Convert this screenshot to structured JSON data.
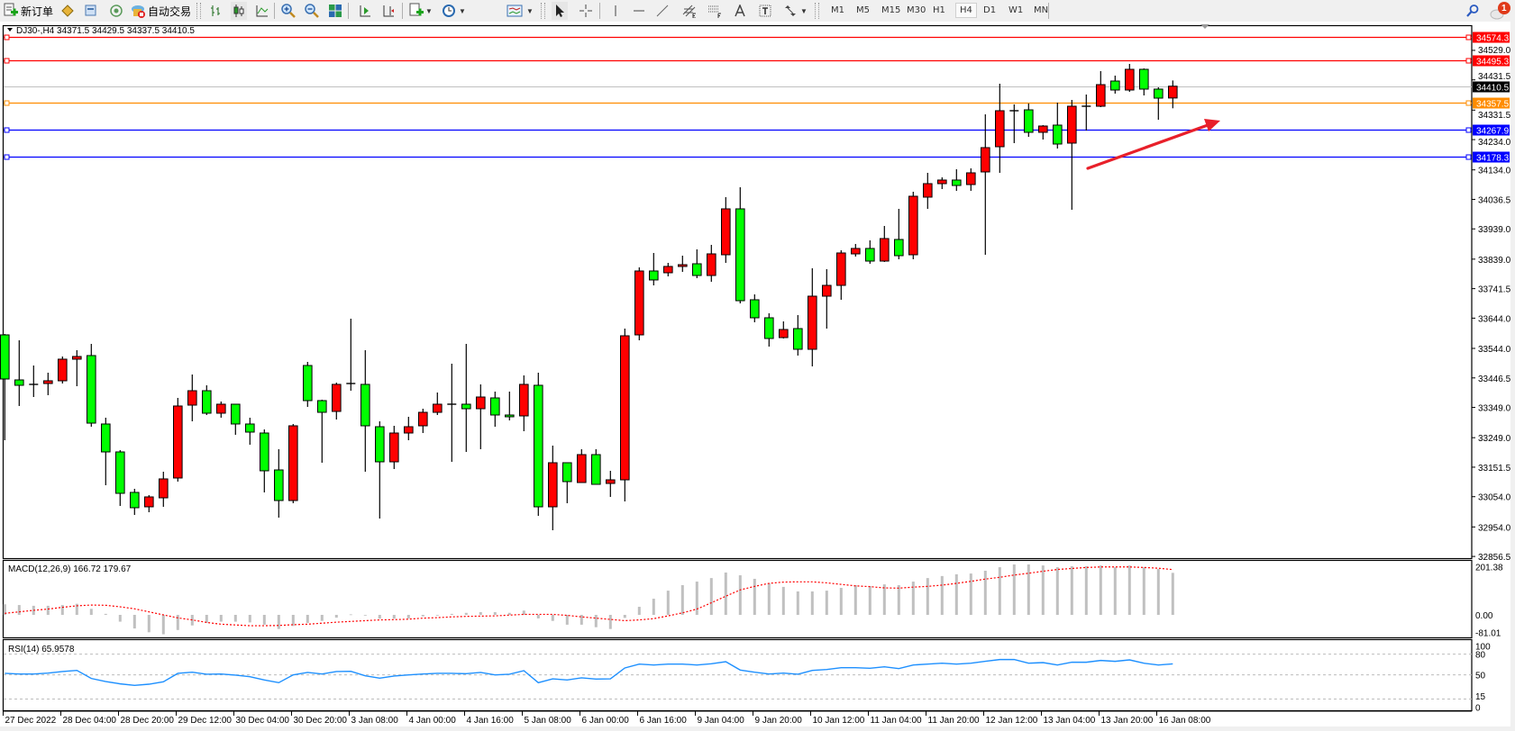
{
  "toolbar": {
    "new_order_label": "新订单",
    "auto_trading_label": "自动交易",
    "timeframes": [
      "M1",
      "M5",
      "M15",
      "M30",
      "H1",
      "H4",
      "D1",
      "W1",
      "MN"
    ],
    "selected_timeframe": "H4",
    "notification_count": "1",
    "icons": [
      "new-order-icon",
      "market-watch-icon",
      "navigator-icon",
      "signals-icon",
      "auto-trading-icon",
      "bar-chart-icon",
      "candlestick-icon",
      "line-chart-icon",
      "zoom-in-icon",
      "zoom-out-icon",
      "tile-windows-icon",
      "autoscroll-icon",
      "chart-shift-icon",
      "indicators-icon",
      "periods-clock-icon",
      "templates-icon",
      "cursor-icon",
      "crosshair-icon",
      "vertical-line-icon",
      "horizontal-line-icon",
      "trendline-icon",
      "equidistant-channel-icon",
      "fibonacci-icon",
      "text-icon",
      "text-label-icon",
      "arrows-icon",
      "search-icon",
      "notification-icon"
    ]
  },
  "chart": {
    "title": "DJ30-,H4  34371.5 34429.5 34337.5 34410.5",
    "colors": {
      "up": "#ff0000",
      "down": "#00ff00",
      "wick": "#000000",
      "bid_line": "#c0c0c0",
      "macd_hist": "#c0c0c0",
      "macd_signal": "#ff0000",
      "rsi": "#1e90ff",
      "arrow": "#e8202a"
    }
  },
  "chart_data": [
    {
      "type": "candlestick",
      "symbol": "DJ30-",
      "timeframe": "H4",
      "ohlc_format": [
        "open",
        "high",
        "low",
        "close"
      ],
      "candles": [
        [
          33588.7,
          33591.7,
          33240.6,
          33442.9
        ],
        [
          33439.9,
          33570.8,
          33353.7,
          33422.1
        ],
        [
          33425.1,
          33487.5,
          33383.4,
          33425.1
        ],
        [
          33428.0,
          33463.7,
          33389.4,
          33437.0
        ],
        [
          33437.0,
          33517.3,
          33428.0,
          33508.4
        ],
        [
          33508.4,
          33538.1,
          33419.1,
          33517.3
        ],
        [
          33520.3,
          33558.9,
          33285.2,
          33297.1
        ],
        [
          33294.2,
          33315.0,
          33091.9,
          33201.9
        ],
        [
          33201.9,
          33207.9,
          33023.4,
          33065.1
        ],
        [
          33068.1,
          33080.0,
          32993.7,
          33017.5
        ],
        [
          33020.5,
          33059.1,
          33002.6,
          33053.2
        ],
        [
          33050.2,
          33136.5,
          33020.5,
          33112.7
        ],
        [
          33115.7,
          33380.4,
          33103.8,
          33353.7
        ],
        [
          33356.6,
          33457.8,
          33303.1,
          33404.2
        ],
        [
          33404.2,
          33422.1,
          33323.9,
          33329.9
        ],
        [
          33329.9,
          33368.5,
          33315.0,
          33359.6
        ],
        [
          33359.6,
          33359.6,
          33258.5,
          33294.2
        ],
        [
          33294.2,
          33315.0,
          33225.7,
          33267.4
        ],
        [
          33264.4,
          33276.3,
          33068.1,
          33139.5
        ],
        [
          33142.4,
          33210.9,
          32984.8,
          33041.3
        ],
        [
          33041.3,
          33294.2,
          33032.4,
          33288.2
        ],
        [
          33487.5,
          33499.4,
          33350.7,
          33371.5
        ],
        [
          33371.5,
          33374.5,
          33166.2,
          33332.8
        ],
        [
          33335.8,
          33431.0,
          33309.0,
          33425.1
        ],
        [
          33428.0,
          33642.2,
          33404.2,
          33428.0
        ],
        [
          33425.1,
          33538.1,
          33136.5,
          33288.2
        ],
        [
          33285.2,
          33303.1,
          32981.8,
          33169.2
        ],
        [
          33169.2,
          33288.2,
          33145.4,
          33264.4
        ],
        [
          33264.4,
          33318.0,
          33240.6,
          33285.2
        ],
        [
          33288.2,
          33344.7,
          33264.4,
          33332.8
        ],
        [
          33332.8,
          33398.3,
          33323.9,
          33359.6
        ],
        [
          33359.6,
          33493.5,
          33169.2,
          33359.6
        ],
        [
          33359.6,
          33558.9,
          33201.9,
          33344.7
        ],
        [
          33344.7,
          33425.1,
          33210.9,
          33383.4
        ],
        [
          33380.4,
          33401.3,
          33285.2,
          33323.9
        ],
        [
          33323.9,
          33401.3,
          33306.1,
          33318.0
        ],
        [
          33320.9,
          33454.8,
          33270.4,
          33425.1
        ],
        [
          33422.1,
          33463.7,
          32990.7,
          33020.5
        ],
        [
          33020.5,
          33222.8,
          32943.1,
          33166.2
        ],
        [
          33166.2,
          33166.2,
          33032.4,
          33103.8
        ],
        [
          33100.8,
          33210.9,
          33100.8,
          33193.0
        ],
        [
          33193.0,
          33210.9,
          33094.8,
          33094.8
        ],
        [
          33097.8,
          33139.5,
          33053.2,
          33109.7
        ],
        [
          33109.7,
          33609.5,
          33038.3,
          33585.7
        ],
        [
          33588.7,
          33811.8,
          33570.8,
          33799.9
        ],
        [
          33799.9,
          33859.4,
          33752.3,
          33770.2
        ],
        [
          33794.0,
          33826.7,
          33782.1,
          33814.8
        ],
        [
          33814.8,
          33850.5,
          33796.9,
          33820.7
        ],
        [
          33823.7,
          33871.3,
          33776.1,
          33785.0
        ],
        [
          33785.0,
          33886.2,
          33764.2,
          33856.4
        ],
        [
          33853.5,
          34043.9,
          33826.7,
          34005.2
        ],
        [
          34005.2,
          34076.6,
          33692.8,
          33701.7
        ],
        [
          33704.7,
          33722.6,
          33630.3,
          33645.2
        ],
        [
          33645.2,
          33660.1,
          33550.0,
          33576.8
        ],
        [
          33579.8,
          33633.3,
          33576.8,
          33606.5
        ],
        [
          33609.5,
          33654.1,
          33520.3,
          33541.1
        ],
        [
          33541.1,
          33808.8,
          33484.6,
          33716.6
        ],
        [
          33716.6,
          33805.9,
          33609.5,
          33752.3
        ],
        [
          33752.3,
          33868.3,
          33704.7,
          33859.4
        ],
        [
          33856.4,
          33889.2,
          33847.5,
          33874.3
        ],
        [
          33874.3,
          33901.1,
          33823.7,
          33832.6
        ],
        [
          33832.6,
          33948.7,
          33829.7,
          33907.0
        ],
        [
          33904.0,
          34005.2,
          33838.6,
          33850.5
        ],
        [
          33853.5,
          34061.7,
          33838.6,
          34046.8
        ],
        [
          34043.9,
          34124.2,
          34005.2,
          34088.5
        ],
        [
          34088.5,
          34109.3,
          34070.6,
          34100.4
        ],
        [
          34100.4,
          34136.1,
          34064.7,
          34082.5
        ],
        [
          34085.5,
          34139.1,
          34064.7,
          34124.2
        ],
        [
          34127.2,
          34317.6,
          33853.5,
          34207.5
        ],
        [
          34210.5,
          34418.7,
          34124.2,
          34329.5
        ],
        [
          34329.5,
          34350.3,
          34222.4,
          34329.5
        ],
        [
          34332.4,
          34353.3,
          34243.2,
          34258.1
        ],
        [
          34258.1,
          34281.9,
          34234.3,
          34278.9
        ],
        [
          34281.9,
          34356.2,
          34204.5,
          34219.4
        ],
        [
          34222.4,
          34365.2,
          34002.2,
          34344.3
        ],
        [
          34344.3,
          34383.0,
          34264.0,
          34344.3
        ],
        [
          34344.3,
          34460.4,
          34341.4,
          34415.7
        ],
        [
          34427.6,
          34445.5,
          34386.0,
          34397.9
        ],
        [
          34397.9,
          34484.2,
          34391.9,
          34466.3
        ],
        [
          34466.3,
          34469.3,
          34380.0,
          34400.9
        ],
        [
          34400.9,
          34406.8,
          34299.7,
          34371.1
        ],
        [
          34371.5,
          34429.5,
          34337.5,
          34410.5
        ]
      ],
      "ylim": [
        32856.5,
        34574.3
      ],
      "y_tick_labels": [
        "34529.0",
        "34431.5",
        "34331.5",
        "34234.0",
        "34134.0",
        "34036.5",
        "33939.0",
        "33839.0",
        "33741.5",
        "33644.0",
        "33544.0",
        "33446.5",
        "33349.0",
        "33249.0",
        "33151.5",
        "33054.0",
        "32954.0",
        "32856.5"
      ],
      "levels": [
        {
          "price": "34574.3",
          "color": "#ff0000"
        },
        {
          "price": "34495.3",
          "color": "#ff0000"
        },
        {
          "price": "34410.5",
          "color": "#000000",
          "bid": true
        },
        {
          "price": "34357.5",
          "color": "#ff8c00"
        },
        {
          "price": "34267.9",
          "color": "#0000ff"
        },
        {
          "price": "34178.3",
          "color": "#0000ff"
        }
      ],
      "annotation": "red-arrow-up-right",
      "x_tick_every_bars": 4,
      "x_tick_labels": [
        "27 Dec 2022",
        "28 Dec 04:00",
        "28 Dec 20:00",
        "29 Dec 12:00",
        "30 Dec 04:00",
        "30 Dec 20:00",
        "3 Jan 08:00",
        "4 Jan 00:00",
        "4 Jan 16:00",
        "5 Jan 08:00",
        "6 Jan 00:00",
        "6 Jan 16:00",
        "9 Jan 04:00",
        "9 Jan 20:00",
        "10 Jan 12:00",
        "11 Jan 04:00",
        "11 Jan 20:00",
        "12 Jan 12:00",
        "13 Jan 04:00",
        "13 Jan 20:00",
        "16 Jan 08:00"
      ]
    },
    {
      "type": "bar",
      "title": "MACD(12,26,9) 166.72 179.67",
      "ylim": [
        -81.01,
        201.38
      ],
      "y_tick_labels": [
        "201.38",
        "0.00",
        "-81.01"
      ],
      "histogram": [
        42,
        39,
        36,
        36,
        39,
        44,
        24,
        4,
        -27,
        -54,
        -69,
        -77,
        -60,
        -42,
        -32,
        -27,
        -27,
        -30,
        -39,
        -56,
        -44,
        -32,
        -24,
        -11,
        2,
        -1,
        -15,
        -15,
        -14,
        -6,
        -1,
        4,
        8,
        11,
        11,
        8,
        17,
        -14,
        -24,
        -39,
        -39,
        -49,
        -56,
        -12,
        32,
        64,
        96,
        118,
        132,
        146,
        168,
        157,
        143,
        125,
        111,
        93,
        93,
        96,
        107,
        118,
        114,
        121,
        118,
        132,
        146,
        154,
        161,
        164,
        175,
        189,
        200,
        200,
        196,
        189,
        193,
        193,
        196,
        189,
        196,
        189,
        182,
        166.72
      ],
      "signal": [
        6,
        12,
        18,
        23,
        30,
        36,
        39,
        38,
        32,
        24,
        12,
        0,
        -12,
        -20,
        -30,
        -37,
        -40,
        -43,
        -43,
        -42,
        -39,
        -37,
        -33,
        -29,
        -26,
        -23,
        -20,
        -19,
        -17,
        -13,
        -11,
        -8,
        -6,
        -5,
        -4,
        -1,
        2,
        2,
        2,
        -2,
        -8,
        -13,
        -18,
        -23,
        -20,
        -15,
        -4,
        8,
        23,
        48,
        74,
        99,
        113,
        125,
        130,
        131,
        131,
        127,
        121,
        115,
        112,
        107,
        106,
        110,
        113,
        118,
        125,
        133,
        142,
        149,
        158,
        165,
        173,
        180,
        184,
        188,
        190,
        190,
        190,
        188,
        185,
        179.67
      ]
    },
    {
      "type": "line",
      "title": "RSI(14) 65.9578",
      "ylim": [
        0,
        100
      ],
      "y_tick_labels": [
        "100",
        "80",
        "50",
        "15",
        "0"
      ],
      "levels": [
        80,
        50,
        15
      ],
      "values": [
        52.2,
        51.3,
        51.3,
        52.6,
        54.8,
        56.5,
        44.8,
        40.4,
        37.0,
        34.8,
        36.5,
        40.0,
        52.2,
        53.9,
        50.9,
        51.3,
        49.6,
        47.4,
        42.6,
        38.7,
        50.0,
        53.5,
        51.3,
        54.8,
        55.2,
        48.7,
        45.2,
        48.3,
        50.0,
        51.3,
        52.2,
        52.2,
        51.7,
        53.5,
        50.0,
        50.9,
        56.1,
        38.7,
        44.3,
        42.6,
        45.7,
        43.9,
        44.3,
        60.0,
        65.6,
        64.3,
        65.6,
        65.6,
        64.3,
        66.1,
        69.1,
        57.0,
        53.9,
        51.3,
        52.6,
        50.9,
        56.5,
        57.8,
        60.4,
        60.4,
        59.6,
        61.7,
        59.1,
        64.3,
        65.6,
        66.9,
        65.6,
        66.9,
        69.6,
        72.2,
        72.2,
        66.9,
        67.8,
        64.3,
        68.3,
        68.3,
        70.9,
        69.6,
        71.7,
        66.9,
        64.3,
        65.9578
      ]
    }
  ]
}
